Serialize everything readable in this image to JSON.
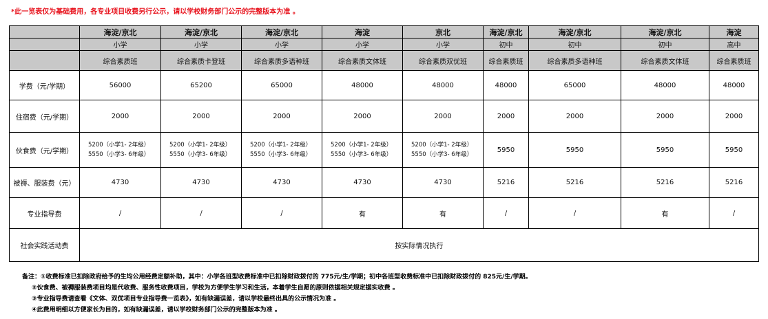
{
  "notice": "*此一览表仅为基础费用，各专业项目收费另行公示，请以学校财务部门公示的完整版本为准 。",
  "columns": [
    {
      "campus": "海淀/京北",
      "level": "小学",
      "program": "综合素质班"
    },
    {
      "campus": "海淀/京北",
      "level": "小学",
      "program": "综合素质卡登班"
    },
    {
      "campus": "海淀/京北",
      "level": "小学",
      "program": "综合素质多语种班"
    },
    {
      "campus": "海淀",
      "level": "小学",
      "program": "综合素质文体班"
    },
    {
      "campus": "京北",
      "level": "小学",
      "program": "综合素质双优班"
    },
    {
      "campus": "海淀/京北",
      "level": "初中",
      "program": "综合素质班"
    },
    {
      "campus": "海淀/京北",
      "level": "初中",
      "program": "综合素质多语种班"
    },
    {
      "campus": "海淀/京北",
      "level": "初中",
      "program": "综合素质文体班"
    },
    {
      "campus": "海淀",
      "level": "高中",
      "program": "综合素质班"
    }
  ],
  "rows": [
    {
      "label": "学费（元/学期）",
      "values": [
        "56000",
        "65200",
        "65000",
        "48000",
        "48000",
        "48000",
        "65000",
        "48000",
        "48000"
      ]
    },
    {
      "label": "住宿费（元/学期）",
      "values": [
        "2000",
        "2000",
        "2000",
        "2000",
        "2000",
        "2000",
        "2000",
        "2000",
        "2000"
      ]
    },
    {
      "label": "伙食费（元/学期）",
      "meal": [
        "5200（小学1- 2年级）",
        "5550（小学3- 6年级）"
      ],
      "values": [
        "5950",
        "5950",
        "5950",
        "5950"
      ]
    },
    {
      "label": "被褥、服装费（元）",
      "values": [
        "4730",
        "4730",
        "4730",
        "4730",
        "4730",
        "5216",
        "5216",
        "5216",
        "5216"
      ]
    },
    {
      "label": "专业指导费",
      "values": [
        "/",
        "/",
        "/",
        "有",
        "有",
        "/",
        "/",
        "有",
        "/"
      ]
    },
    {
      "label": "社会实践活动费",
      "merged": "按实际情况执行"
    }
  ],
  "notes": [
    "备注：①收费标准已扣除政府给予的生均公用经费定额补助，其中：小学各班型收费标准中已扣除财政拨付的 775元/生/学期；初中各班型收费标准中已扣除财政拨付的 825元/生/学期。",
    "②伙食费、被褥服装费项目均是代收费、服务性收费项目，学校为方便学生学习和生活，本着学生自愿的原则依据相关规定据实收费 。",
    "③专业指导费请查看《文体、双优项目专业指导费一览表》，如有缺漏误差，请以学校最终出具的公示情况为准 。",
    "④此费用明细以方便家长为目的，如有缺漏误差，请以学校财务部门公示的完整版本为准 。"
  ]
}
